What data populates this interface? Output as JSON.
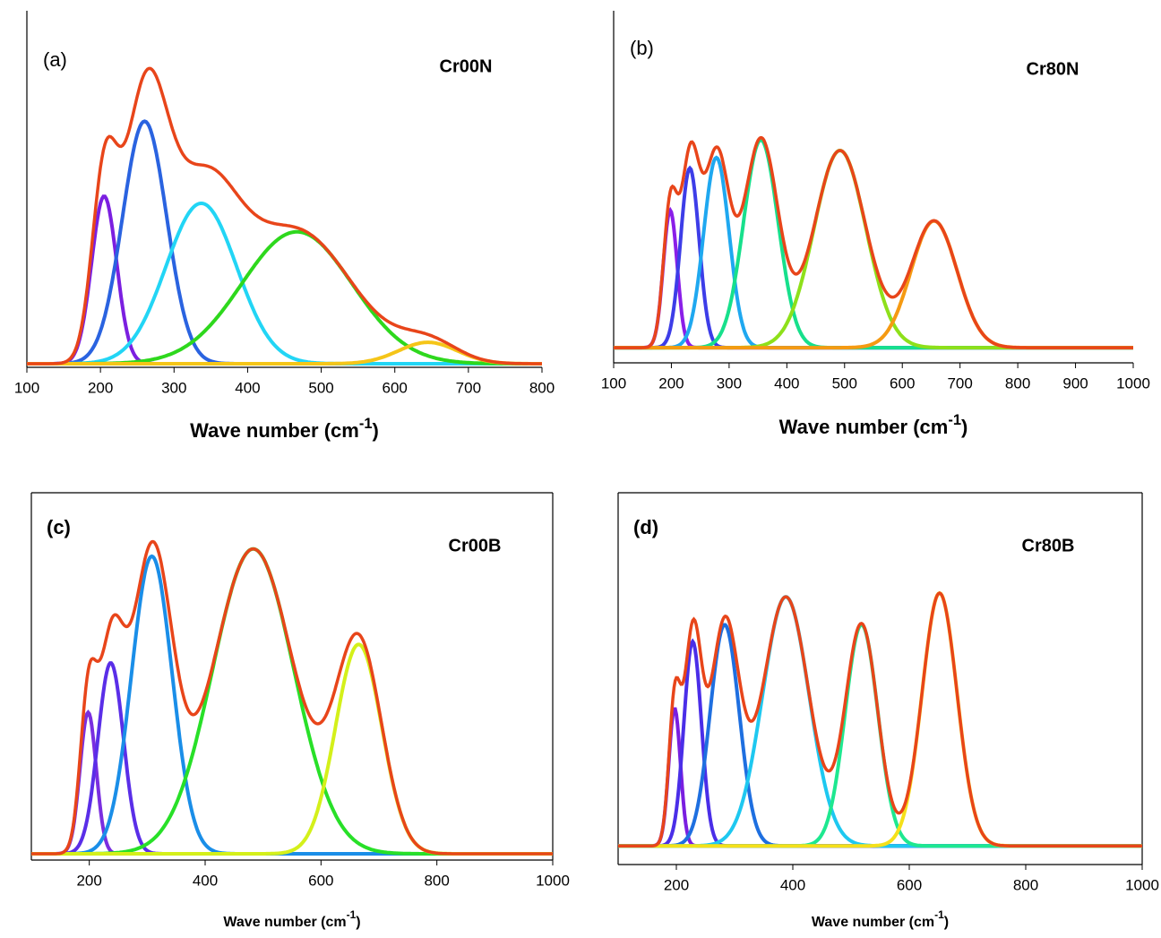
{
  "chart_data": [
    {
      "type": "line",
      "panel_label": "(a)",
      "sample": "Cr00N",
      "xlabel": [
        "Wave number (cm",
        "-1",
        ")"
      ],
      "xlim": [
        100,
        800
      ],
      "xticks": [
        100,
        200,
        300,
        400,
        500,
        600,
        700,
        800
      ],
      "ylim": [
        0,
        100
      ],
      "baseline": 1,
      "fit_color": "#e8451a",
      "peaks": [
        {
          "color": "#7b1fe0",
          "center": 205,
          "height": 47,
          "sigma": 17
        },
        {
          "color": "#2a63e0",
          "center": 260,
          "height": 68,
          "sigma": 30
        },
        {
          "color": "#22d5f5",
          "center": 337,
          "height": 45,
          "sigma": 48
        },
        {
          "color": "#2ed81d",
          "center": 467,
          "height": 37,
          "sigma": 75
        },
        {
          "color": "#f5c518",
          "center": 645,
          "height": 6,
          "sigma": 40
        }
      ]
    },
    {
      "type": "line",
      "panel_label": "(b)",
      "sample": "Cr80N",
      "xlabel": [
        "Wave number (cm",
        "-1",
        ")"
      ],
      "xlim": [
        100,
        1000
      ],
      "xticks": [
        100,
        200,
        300,
        400,
        500,
        600,
        700,
        800,
        900,
        1000
      ],
      "ylim": [
        0,
        100
      ],
      "baseline": 4.3,
      "fit_color": "#e8451a",
      "peaks": [
        {
          "color": "#8a1ee8",
          "center": 198,
          "height": 39,
          "sigma": 12
        },
        {
          "color": "#3d3de8",
          "center": 232,
          "height": 51,
          "sigma": 16
        },
        {
          "color": "#1fa8f0",
          "center": 278,
          "height": 54,
          "sigma": 22
        },
        {
          "color": "#17e08c",
          "center": 355,
          "height": 59,
          "sigma": 30
        },
        {
          "color": "#8ee01a",
          "center": 492,
          "height": 56,
          "sigma": 45
        },
        {
          "color": "#f59a12",
          "center": 655,
          "height": 36,
          "sigma": 40
        }
      ]
    },
    {
      "type": "line",
      "panel_label": "(c)",
      "sample": "Cr00B",
      "xlabel": [
        "Wave number (cm",
        "-1",
        ")"
      ],
      "xlim": [
        100,
        1000
      ],
      "xticks": [
        200,
        400,
        600,
        800,
        1000
      ],
      "ylim": [
        0,
        100
      ],
      "baseline": 1.7,
      "fit_color": "#e8451a",
      "peaks": [
        {
          "color": "#7a2ee0",
          "center": 198,
          "height": 38.5,
          "sigma": 14
        },
        {
          "color": "#5a2ee8",
          "center": 237,
          "height": 52,
          "sigma": 22
        },
        {
          "color": "#1a8ee8",
          "center": 308,
          "height": 81,
          "sigma": 35
        },
        {
          "color": "#28e028",
          "center": 483,
          "height": 83,
          "sigma": 70
        },
        {
          "color": "#d4f01a",
          "center": 665,
          "height": 57,
          "sigma": 40
        }
      ]
    },
    {
      "type": "line",
      "panel_label": "(d)",
      "sample": "Cr80B",
      "xlabel": [
        "Wave number (cm",
        "-1",
        ")"
      ],
      "xlim": [
        100,
        1000
      ],
      "xticks": [
        200,
        400,
        600,
        800,
        1000
      ],
      "ylim": [
        0,
        100
      ],
      "baseline": 5,
      "fit_color": "#e8451a",
      "peaks": [
        {
          "color": "#7a1ee0",
          "center": 197,
          "height": 37,
          "sigma": 10
        },
        {
          "color": "#4a2ee8",
          "center": 228,
          "height": 55,
          "sigma": 15
        },
        {
          "color": "#1e6fe0",
          "center": 283,
          "height": 59.5,
          "sigma": 25
        },
        {
          "color": "#1ec8f0",
          "center": 388,
          "height": 67,
          "sigma": 40
        },
        {
          "color": "#1ee890",
          "center": 518,
          "height": 59.5,
          "sigma": 28
        },
        {
          "color": "#f5e01a",
          "center": 652,
          "height": 68,
          "sigma": 30
        }
      ]
    }
  ]
}
